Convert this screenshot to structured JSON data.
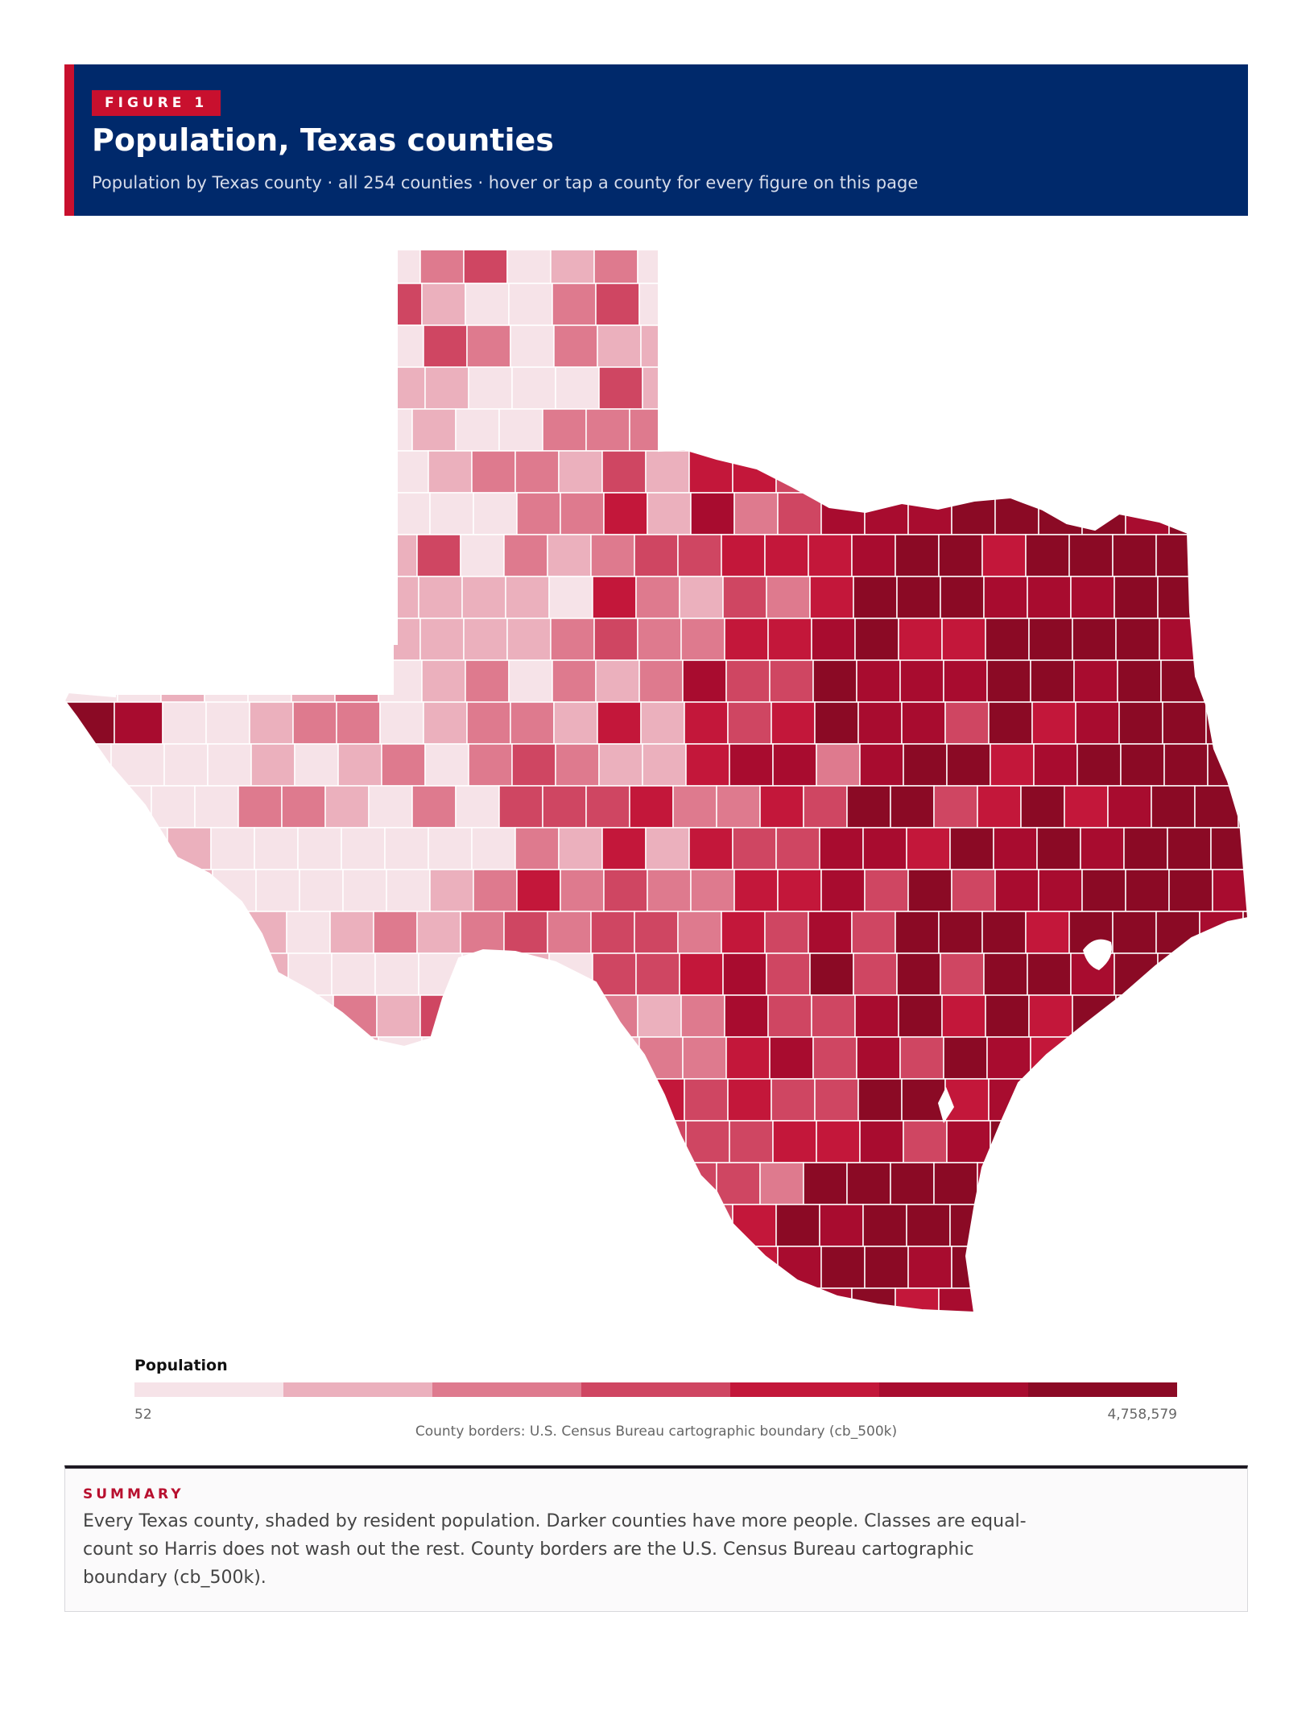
{
  "header": {
    "tag": "FIGURE 1",
    "title": "Population, Texas counties",
    "subtitle": "Population by Texas county · all 254 counties · hover or tap a county for every figure on this page"
  },
  "colors": {
    "header_bg": "#00296b",
    "accent": "#c8102e",
    "classes": [
      "#f6e3e8",
      "#ebb0bd",
      "#de7a8e",
      "#cf4662",
      "#c3173a",
      "#a80c2f",
      "#8b0a25"
    ]
  },
  "legend": {
    "title": "Population",
    "min_label": "52",
    "max_label": "4,758,579"
  },
  "source_note": "County borders: U.S. Census Bureau cartographic boundary (cb_500k)",
  "summary": {
    "label": "SUMMARY",
    "text": "Every Texas county, shaded by resident population. Darker counties have more people. Classes are equal-count so Harris does not wash out the rest. County borders are the U.S. Census Bureau cartographic boundary (cb_500k)."
  }
}
